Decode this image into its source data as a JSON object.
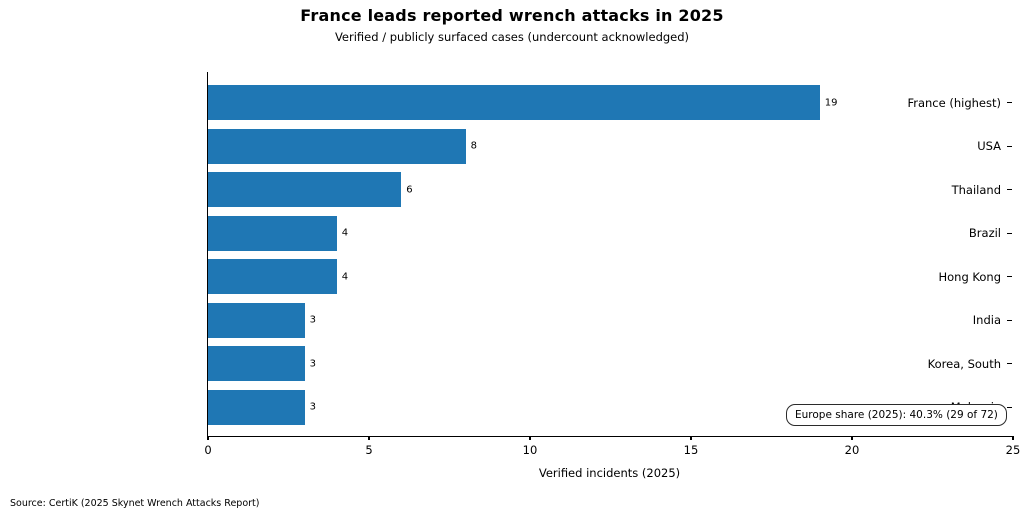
{
  "title": "France leads reported wrench attacks in 2025",
  "subtitle": "Verified / publicly surfaced cases (undercount acknowledged)",
  "annotation": "Europe share (2025): 40.3% (29 of 72)",
  "source": "Source: CertiK (2025 Skynet Wrench Attacks Report)",
  "colors": {
    "bar": "#1f77b4",
    "text": "#000000",
    "annotation_border": "#2b2b2b",
    "background": "#ffffff"
  },
  "chart_data": {
    "type": "bar",
    "orientation": "horizontal",
    "title": "France leads reported wrench attacks in 2025",
    "subtitle": "Verified / publicly surfaced cases (undercount acknowledged)",
    "categories": [
      "France (highest)",
      "USA",
      "Thailand",
      "Brazil",
      "Hong Kong",
      "India",
      "Korea, South",
      "Malaysia"
    ],
    "values": [
      19,
      8,
      6,
      4,
      4,
      3,
      3,
      3
    ],
    "xlabel": "Verified incidents (2025)",
    "ylabel": "",
    "xlim": [
      0,
      25
    ],
    "xticks": [
      0,
      5,
      10,
      15,
      20,
      25
    ],
    "grid": false,
    "legend": false,
    "bar_color": "#1f77b4",
    "annotation": "Europe share (2025): 40.3% (29 of 72)",
    "source": "Source: CertiK (2025 Skynet Wrench Attacks Report)"
  }
}
